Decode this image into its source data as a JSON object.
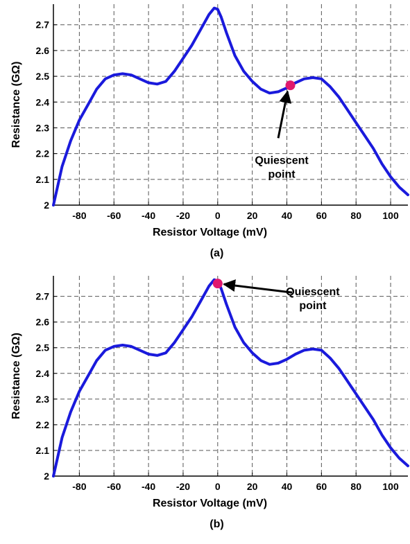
{
  "chart_data": [
    {
      "type": "line",
      "panel_label": "(a)",
      "xlabel": "Resistor Voltage (mV)",
      "ylabel": "Resistance (GΩ)",
      "xlim": [
        -95,
        110
      ],
      "ylim": [
        2.0,
        2.78
      ],
      "xticks": [
        -80,
        -60,
        -40,
        -20,
        0,
        20,
        40,
        60,
        80,
        100
      ],
      "yticks": [
        "2",
        "2.1",
        "2.2",
        "2.3",
        "2.4",
        "2.5",
        "2.6",
        "2.7"
      ],
      "grid": true,
      "line_color": "#1a1adc",
      "series": [
        {
          "x": [
            -95,
            -90,
            -85,
            -80,
            -75,
            -70,
            -65,
            -60,
            -55,
            -50,
            -45,
            -40,
            -35,
            -30,
            -25,
            -20,
            -15,
            -10,
            -5,
            -2,
            0,
            2,
            5,
            10,
            15,
            20,
            25,
            30,
            35,
            40,
            45,
            50,
            55,
            60,
            65,
            70,
            75,
            80,
            85,
            90,
            95,
            100,
            105,
            110
          ],
          "y": [
            2.0,
            2.15,
            2.25,
            2.33,
            2.39,
            2.45,
            2.49,
            2.505,
            2.51,
            2.505,
            2.49,
            2.475,
            2.47,
            2.48,
            2.52,
            2.57,
            2.62,
            2.68,
            2.74,
            2.765,
            2.76,
            2.73,
            2.67,
            2.58,
            2.52,
            2.48,
            2.45,
            2.435,
            2.44,
            2.455,
            2.475,
            2.49,
            2.495,
            2.49,
            2.46,
            2.42,
            2.37,
            2.32,
            2.27,
            2.22,
            2.16,
            2.11,
            2.07,
            2.04
          ]
        }
      ],
      "marker": {
        "x": 42,
        "y": 2.465,
        "color": "#e0196e"
      },
      "annotation": {
        "lines": [
          "Quiescent",
          "point"
        ],
        "text_x": 37,
        "text_y": 2.16,
        "arrow_from": [
          35,
          2.26
        ]
      }
    },
    {
      "type": "line",
      "panel_label": "(b)",
      "xlabel": "Resistor Voltage (mV)",
      "ylabel": "Resistance (GΩ)",
      "xlim": [
        -95,
        110
      ],
      "ylim": [
        2.0,
        2.78
      ],
      "xticks": [
        -80,
        -60,
        -40,
        -20,
        0,
        20,
        40,
        60,
        80,
        100
      ],
      "yticks": [
        "2",
        "2.1",
        "2.2",
        "2.3",
        "2.4",
        "2.5",
        "2.6",
        "2.7"
      ],
      "grid": true,
      "line_color": "#1a1adc",
      "series": [
        {
          "x": [
            -95,
            -90,
            -85,
            -80,
            -75,
            -70,
            -65,
            -60,
            -55,
            -50,
            -45,
            -40,
            -35,
            -30,
            -25,
            -20,
            -15,
            -10,
            -5,
            -2,
            0,
            2,
            5,
            10,
            15,
            20,
            25,
            30,
            35,
            40,
            45,
            50,
            55,
            60,
            65,
            70,
            75,
            80,
            85,
            90,
            95,
            100,
            105,
            110
          ],
          "y": [
            2.0,
            2.15,
            2.25,
            2.33,
            2.39,
            2.45,
            2.49,
            2.505,
            2.51,
            2.505,
            2.49,
            2.475,
            2.47,
            2.48,
            2.52,
            2.57,
            2.62,
            2.68,
            2.74,
            2.765,
            2.76,
            2.73,
            2.67,
            2.58,
            2.52,
            2.48,
            2.45,
            2.435,
            2.44,
            2.455,
            2.475,
            2.49,
            2.495,
            2.49,
            2.46,
            2.42,
            2.37,
            2.32,
            2.27,
            2.22,
            2.16,
            2.11,
            2.07,
            2.04
          ]
        }
      ],
      "marker": {
        "x": 0,
        "y": 2.75,
        "color": "#e0196e"
      },
      "annotation": {
        "lines": [
          "Quiescent",
          "point"
        ],
        "text_x": 55,
        "text_y": 2.705,
        "arrow_from": [
          43,
          2.715
        ]
      }
    }
  ]
}
